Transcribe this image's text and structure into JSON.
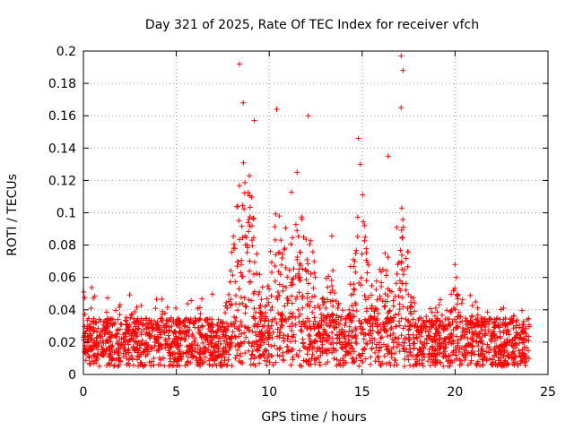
{
  "chart_data": {
    "type": "scatter",
    "title": "Day 321 of 2025, Rate Of TEC Index for receiver vfch",
    "xlabel": "GPS time / hours",
    "ylabel": "ROTI / TECUs",
    "xlim": [
      0,
      25
    ],
    "ylim": [
      0,
      0.2
    ],
    "x_ticks": [
      0,
      5,
      10,
      15,
      20,
      25
    ],
    "x_tick_labels": [
      "0",
      "5",
      "10",
      "15",
      "20",
      "25"
    ],
    "y_ticks": [
      0,
      0.02,
      0.04,
      0.06,
      0.08,
      0.1,
      0.12,
      0.14,
      0.16,
      0.18,
      0.2
    ],
    "y_tick_labels": [
      "0",
      "0.02",
      "0.04",
      "0.06",
      "0.08",
      "0.1",
      "0.12",
      "0.14",
      "0.16",
      "0.18",
      "0.2"
    ],
    "grid": true,
    "marker": "+",
    "color": "#ff0000",
    "series": [
      {
        "name": "ROTI",
        "x_range": [
          0,
          24
        ],
        "baseline_range": [
          0.005,
          0.035
        ],
        "typical_peak": 0.05,
        "notable_peaks": [
          {
            "x": 8.4,
            "y": 0.192
          },
          {
            "x": 8.6,
            "y": 0.168
          },
          {
            "x": 9.2,
            "y": 0.157
          },
          {
            "x": 10.4,
            "y": 0.164
          },
          {
            "x": 12.1,
            "y": 0.16
          },
          {
            "x": 11.5,
            "y": 0.125
          },
          {
            "x": 14.8,
            "y": 0.146
          },
          {
            "x": 14.9,
            "y": 0.13
          },
          {
            "x": 16.4,
            "y": 0.135
          },
          {
            "x": 17.1,
            "y": 0.197
          },
          {
            "x": 17.2,
            "y": 0.188
          },
          {
            "x": 17.1,
            "y": 0.165
          },
          {
            "x": 20.0,
            "y": 0.068
          }
        ]
      }
    ]
  }
}
